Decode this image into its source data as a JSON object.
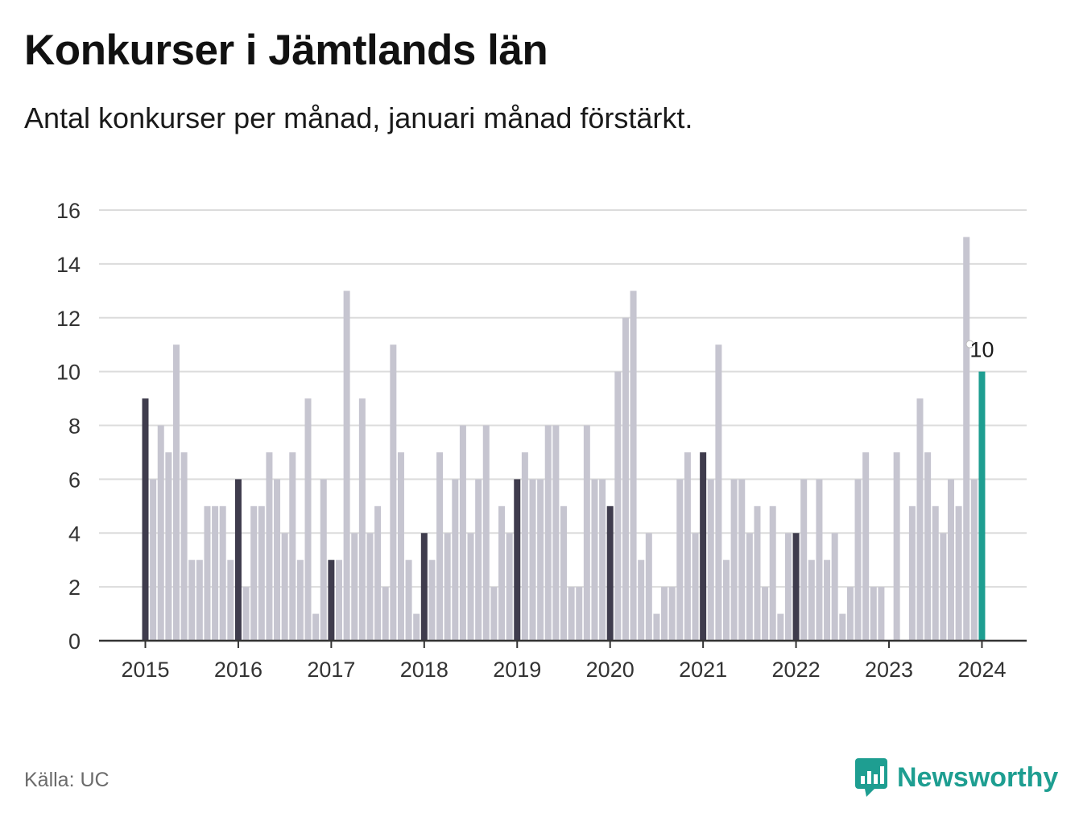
{
  "title": "Konkurser i Jämtlands län",
  "subtitle": "Antal konkurser per månad, januari månad förstärkt.",
  "source": "Källa: UC",
  "brand": {
    "name": "Newsworthy",
    "icon": "newsworthy-logo-icon",
    "color": "#1e9e91"
  },
  "colors": {
    "bar_default": "#c6c5d0",
    "bar_january": "#3f3c4d",
    "bar_latest": "#1e9e91",
    "grid": "#dcdcdc",
    "axis": "#333333",
    "text": "#333333"
  },
  "chart_data": {
    "type": "bar",
    "title": "Konkurser i Jämtlands län",
    "subtitle": "Antal konkurser per månad, januari månad förstärkt.",
    "xlabel": "",
    "ylabel": "",
    "ylim": [
      0,
      16
    ],
    "y_ticks": [
      0,
      2,
      4,
      6,
      8,
      10,
      12,
      14,
      16
    ],
    "x_tick_labels": [
      "2015",
      "2016",
      "2017",
      "2018",
      "2019",
      "2020",
      "2021",
      "2022",
      "2023",
      "2024"
    ],
    "grid": true,
    "start_year": 2015,
    "values": [
      9,
      6,
      8,
      7,
      11,
      7,
      3,
      3,
      5,
      5,
      5,
      3,
      6,
      2,
      5,
      5,
      7,
      6,
      4,
      7,
      3,
      9,
      1,
      6,
      3,
      3,
      13,
      4,
      9,
      4,
      5,
      2,
      11,
      7,
      3,
      1,
      4,
      3,
      7,
      4,
      6,
      8,
      4,
      6,
      8,
      2,
      5,
      4,
      6,
      7,
      6,
      6,
      8,
      8,
      5,
      2,
      2,
      8,
      6,
      6,
      5,
      10,
      12,
      13,
      3,
      4,
      1,
      2,
      2,
      6,
      7,
      4,
      7,
      6,
      11,
      3,
      6,
      6,
      4,
      5,
      2,
      5,
      1,
      4,
      4,
      6,
      3,
      6,
      3,
      4,
      1,
      2,
      6,
      7,
      2,
      2,
      0,
      7,
      0,
      5,
      9,
      7,
      5,
      4,
      6,
      5,
      15,
      6,
      10
    ],
    "highlight": {
      "rule": "January bars emphasized; latest bar highlighted",
      "latest_label": "10"
    }
  }
}
